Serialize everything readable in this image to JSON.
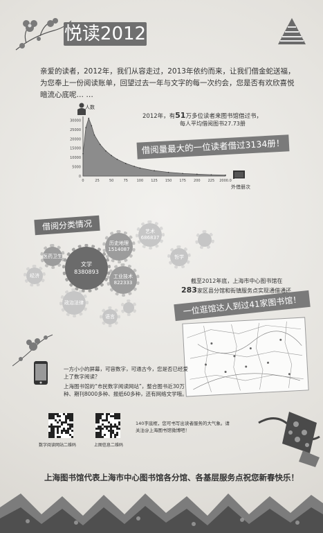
{
  "header": {
    "title": "悦读2012",
    "intro": "亲爱的读者，2012年，我们从容走过，2013年依约而来，让我们借金蛇送福，为您奉上一份阅读账单，回望过去一年与文字的每一次约会，您是否有欢欣喜悦暗流心底呢… …"
  },
  "chart": {
    "y_label": "人数",
    "stat_prefix": "2012年，有",
    "stat_big": "51",
    "stat_suffix": "万多位读者来图书馆借过书，",
    "avg": "每人平均借阅图书27.73册",
    "banner": "借阅量最大的一位读者借过3134册！",
    "x_label": "外借册次"
  },
  "chart_data": {
    "type": "area",
    "xlabel": "外借册次",
    "ylabel": "人数",
    "x_ticks": [
      "0",
      "25",
      "50",
      "75",
      "100",
      "125",
      "150",
      "175",
      "200",
      "225",
      "2000.0"
    ],
    "y_ticks": [
      "0",
      "5000",
      "10000",
      "15000",
      "20000",
      "25000",
      "30000"
    ],
    "ylim": [
      0,
      32000
    ],
    "x": [
      0,
      5,
      10,
      15,
      20,
      30,
      40,
      50,
      60,
      75,
      90,
      100,
      125,
      150,
      175,
      200,
      225,
      250
    ],
    "values": [
      12000,
      26000,
      31000,
      27000,
      22000,
      17000,
      13500,
      11000,
      9000,
      6800,
      5200,
      4300,
      2900,
      2000,
      1400,
      1000,
      700,
      500
    ]
  },
  "categories": {
    "banner": "借阅分类情况",
    "gears": [
      {
        "name": "文学",
        "value": "8380893"
      },
      {
        "name": "历史地理",
        "value": "1514087"
      },
      {
        "name": "工业技术",
        "value": "822333"
      },
      {
        "name": "艺术",
        "value": "686837"
      },
      {
        "name": "哲学",
        "value": ""
      },
      {
        "name": "医药卫生",
        "value": ""
      },
      {
        "name": "经济",
        "value": ""
      },
      {
        "name": "政治法律",
        "value": ""
      },
      {
        "name": "语言",
        "value": ""
      },
      {
        "name": "综合",
        "value": ""
      }
    ]
  },
  "libraries": {
    "line1": "截至2012年底，上海市中心图书馆在",
    "line2_big": "283",
    "line2": "家区县分馆和街镇服务点实现通借通还",
    "banner": "一位逛馆达人到过41家图书馆！"
  },
  "digital": {
    "line1": "一方小小的屏幕，可容数字，可通古今，您是否已经爱上了数字阅读？",
    "line2": "上海图书馆的“市民数字阅读网站”，整合图书近30万种、期刊8000多种、报纸60多种，还有网络文学哦。",
    "qr1_label": "数字阅读网站二维码",
    "qr2_label": "上图信息二维码",
    "weibo": "140字底框，您可书写出读者服务的大气象。请关注@上海图书馆微博吧！"
  },
  "footer": {
    "text": "上海图书馆代表上海市中心图书馆各分馆、各基层服务点祝您新春快乐！"
  }
}
